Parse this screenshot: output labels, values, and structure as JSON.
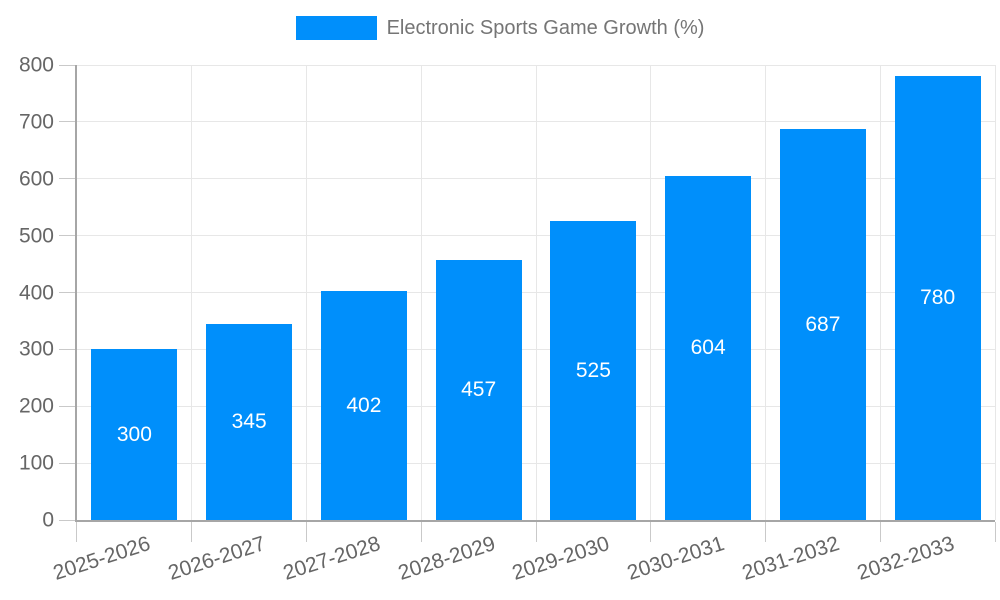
{
  "chart_data": {
    "type": "bar",
    "title": "",
    "legend_label": "Electronic Sports Game Growth (%)",
    "legend_position": "top",
    "categories": [
      "2025-2026",
      "2026-2027",
      "2027-2028",
      "2028-2029",
      "2029-2030",
      "2030-2031",
      "2031-2032",
      "2032-2033"
    ],
    "values": [
      300,
      345,
      402,
      457,
      525,
      604,
      687,
      780
    ],
    "value_labels": [
      "300",
      "345",
      "402",
      "457",
      "525",
      "604",
      "687",
      "780"
    ],
    "xlabel": "",
    "ylabel": "",
    "ylim": [
      0,
      800
    ],
    "y_tick_step": 100,
    "y_ticks": [
      0,
      100,
      200,
      300,
      400,
      500,
      600,
      700,
      800
    ],
    "grid": true,
    "colors": {
      "bar": "#008FFB",
      "value_label": "#ffffff",
      "axis_line": "#a6a6a6",
      "gridline": "#e7e7e7",
      "tick_mark": "#c9c9c9",
      "axis_label": "#666666",
      "legend_text": "#757575",
      "background": "#ffffff"
    }
  }
}
